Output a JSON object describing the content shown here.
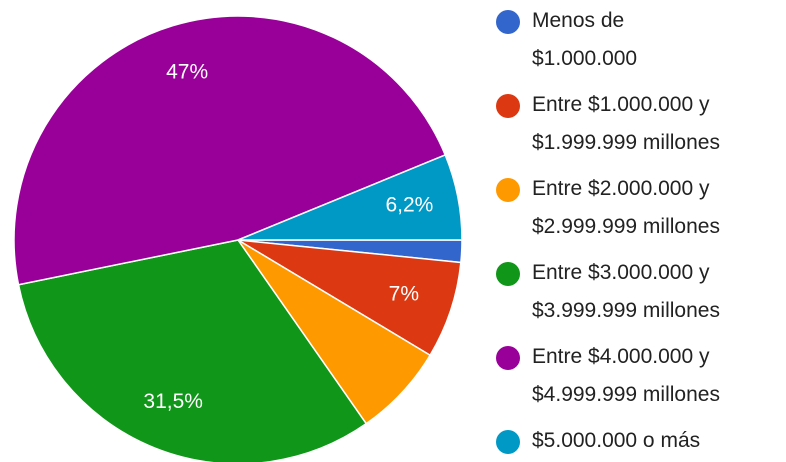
{
  "chart_data": {
    "type": "pie",
    "categories": [
      "Menos de\n$1.000.000",
      "Entre $1.000.000 y\n$1.999.999 millones",
      "Entre $2.000.000 y\n$2.999.999 millones",
      "Entre $3.000.000 y\n$3.999.999 millones",
      "Entre $4.000.000 y\n$4.999.999 millones",
      "$5.000.000 o más"
    ],
    "values": [
      1.6,
      7,
      6.7,
      31.5,
      47,
      6.2
    ],
    "value_labels": [
      null,
      "7%",
      null,
      "31,5%",
      "47%",
      "6,2%"
    ],
    "colors": [
      "#3366cc",
      "#dc3912",
      "#ff9900",
      "#109618",
      "#990099",
      "#0099c6"
    ],
    "legend": "right"
  }
}
